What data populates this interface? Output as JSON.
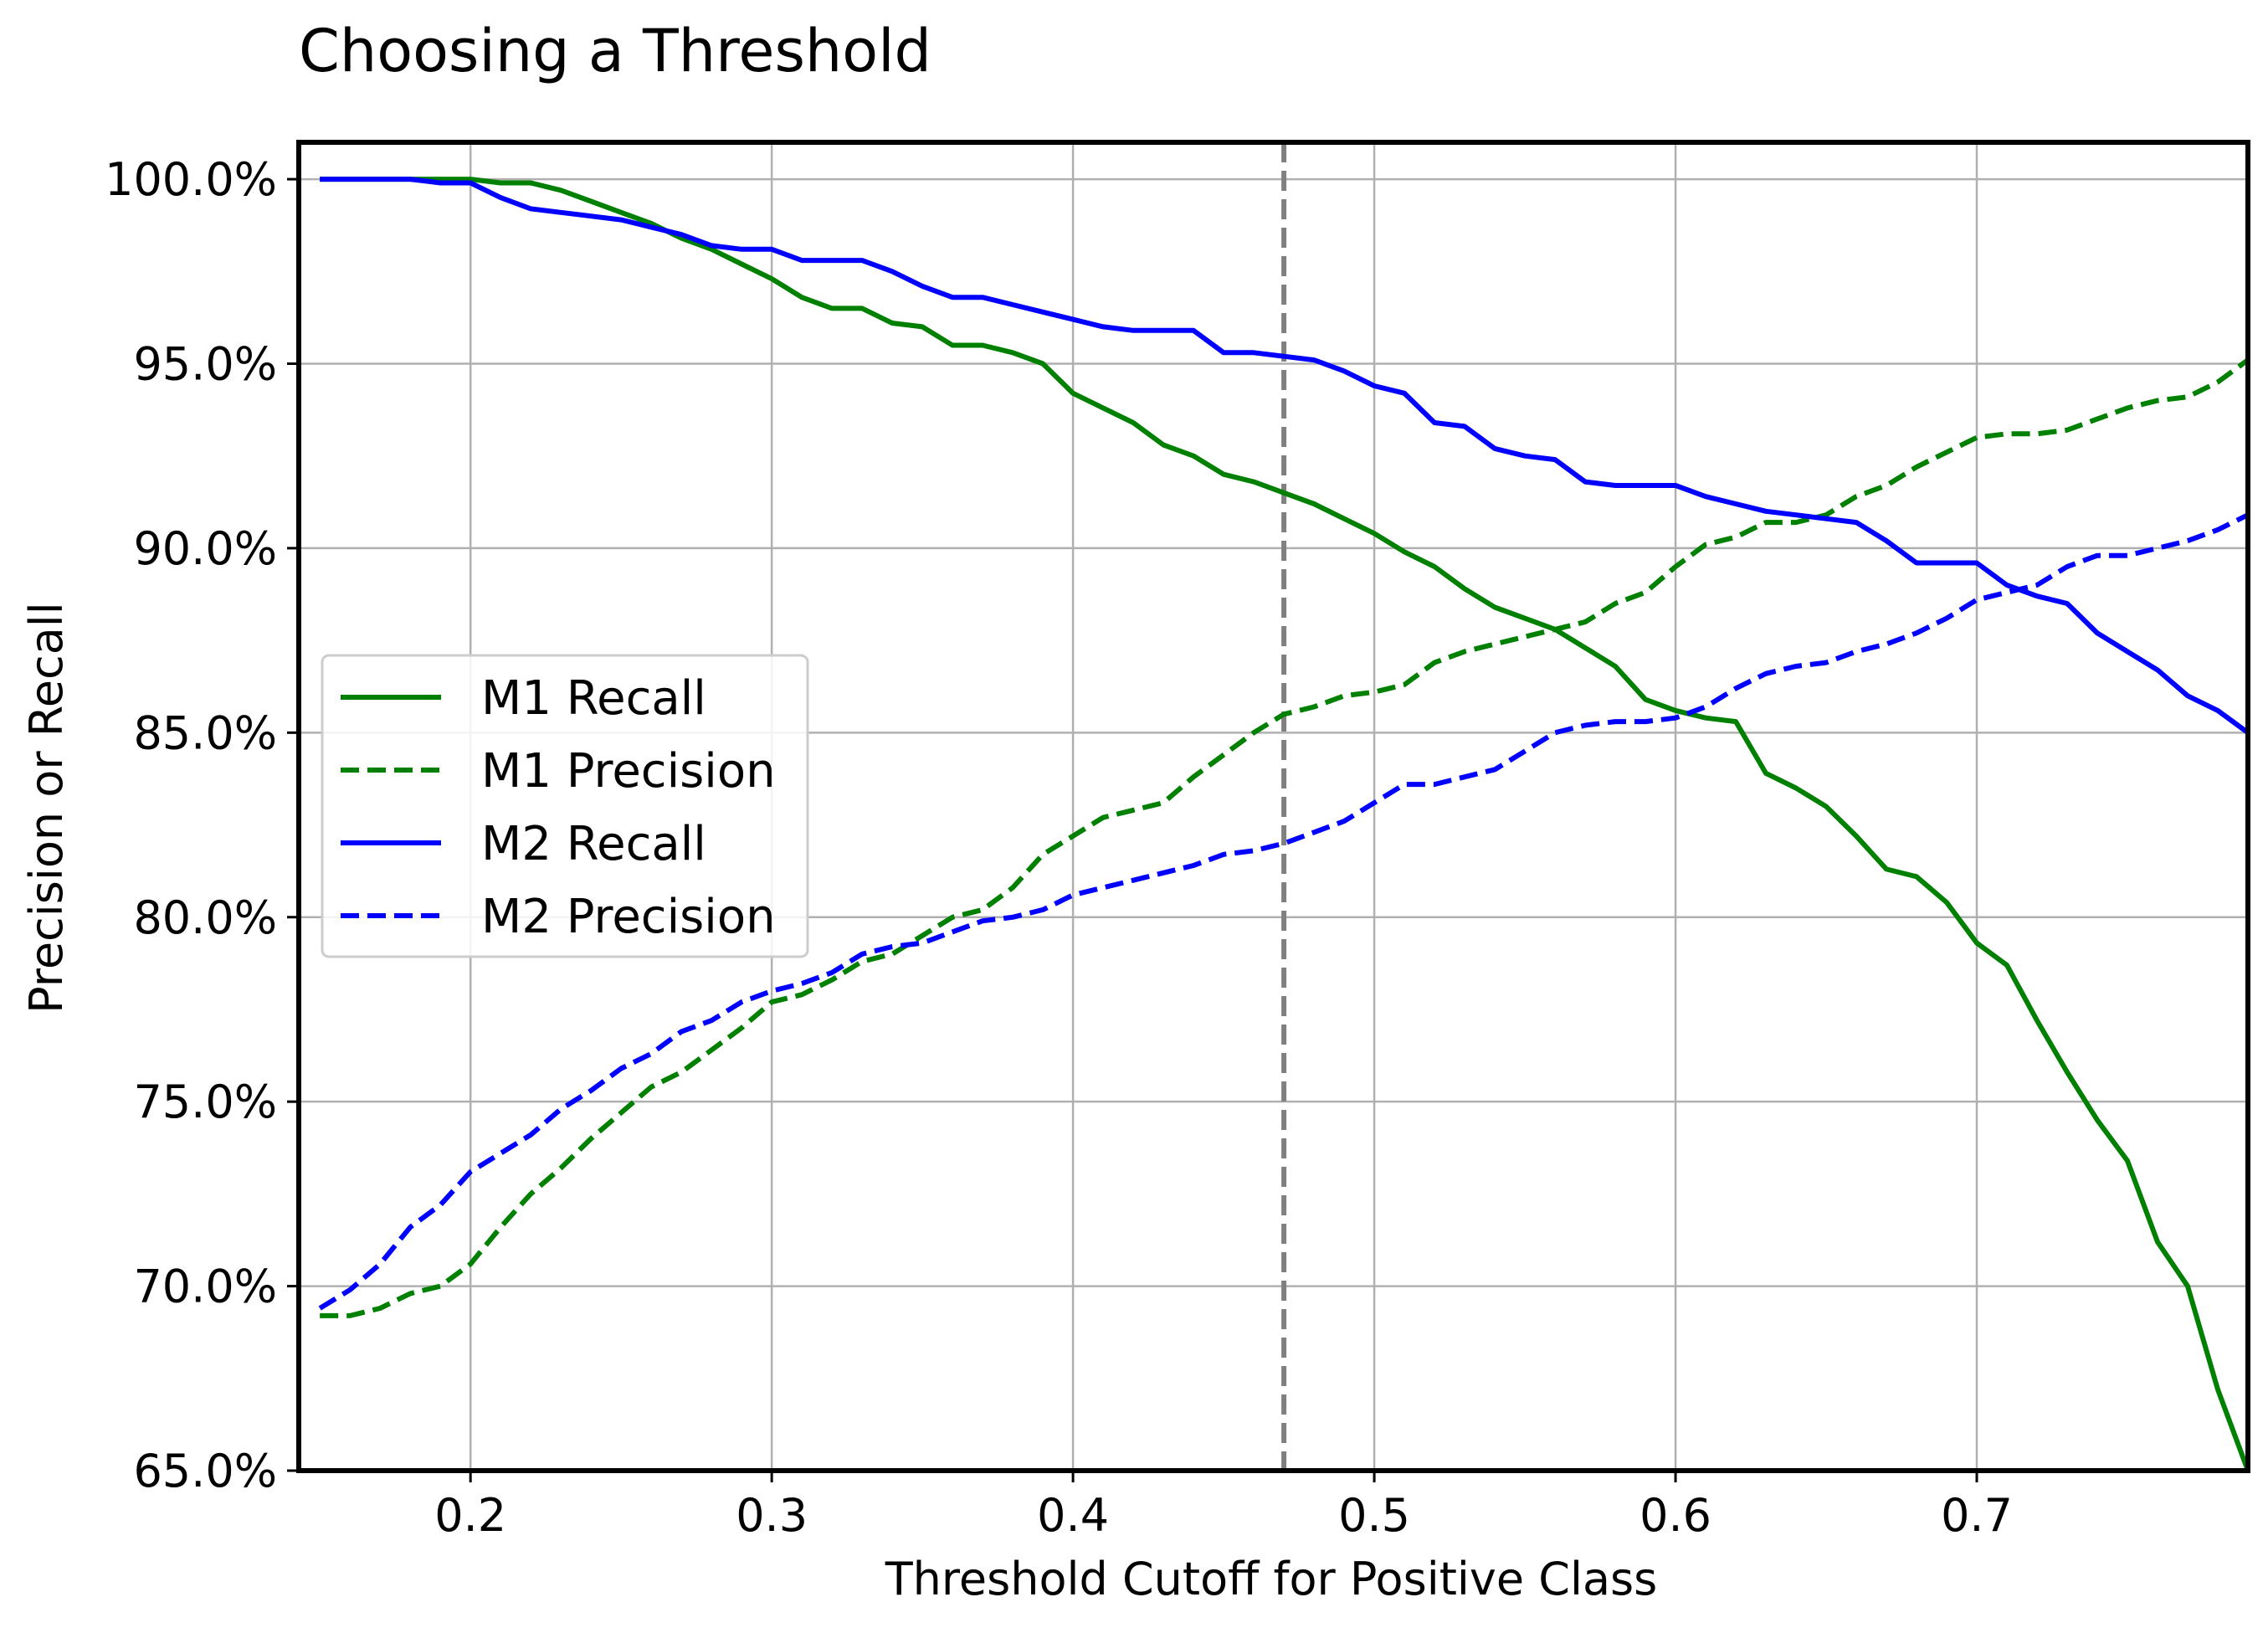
{
  "chart_data": {
    "type": "line",
    "title": "Choosing a Threshold",
    "xlabel": "Threshold Cutoff for Positive Class",
    "ylabel": "Precision or Recall",
    "xlim": [
      0.143,
      0.79
    ],
    "ylim": [
      0.65,
      1.01
    ],
    "x_ticks": [
      0.2,
      0.3,
      0.4,
      0.5,
      0.6,
      0.7
    ],
    "x_tick_labels": [
      "0.2",
      "0.3",
      "0.4",
      "0.5",
      "0.6",
      "0.7"
    ],
    "y_ticks": [
      0.65,
      0.7,
      0.75,
      0.8,
      0.85,
      0.9,
      0.95,
      1.0
    ],
    "y_tick_labels": [
      "65.0%",
      "70.0%",
      "75.0%",
      "80.0%",
      "85.0%",
      "90.0%",
      "95.0%",
      "100.0%"
    ],
    "grid": true,
    "legend_position": "center-left",
    "threshold_line": {
      "x": 0.47,
      "color": "#808080",
      "style": "dashed"
    },
    "x": [
      0.15,
      0.16,
      0.17,
      0.18,
      0.19,
      0.2,
      0.21,
      0.22,
      0.23,
      0.24,
      0.25,
      0.26,
      0.27,
      0.28,
      0.29,
      0.3,
      0.31,
      0.32,
      0.33,
      0.34,
      0.35,
      0.36,
      0.37,
      0.38,
      0.39,
      0.4,
      0.41,
      0.42,
      0.43,
      0.44,
      0.45,
      0.46,
      0.47,
      0.48,
      0.49,
      0.5,
      0.51,
      0.52,
      0.53,
      0.54,
      0.55,
      0.56,
      0.57,
      0.58,
      0.59,
      0.6,
      0.61,
      0.62,
      0.63,
      0.64,
      0.65,
      0.66,
      0.67,
      0.68,
      0.69,
      0.7,
      0.71,
      0.72,
      0.73,
      0.74,
      0.75,
      0.76,
      0.77,
      0.78,
      0.79
    ],
    "series": [
      {
        "name": "M1 Recall",
        "color": "#008000",
        "style": "solid",
        "values": [
          1.0,
          1.0,
          1.0,
          1.0,
          1.0,
          1.0,
          0.999,
          0.999,
          0.997,
          0.994,
          0.991,
          0.988,
          0.984,
          0.981,
          0.977,
          0.973,
          0.968,
          0.965,
          0.965,
          0.961,
          0.96,
          0.955,
          0.955,
          0.953,
          0.95,
          0.942,
          0.938,
          0.934,
          0.928,
          0.925,
          0.92,
          0.918,
          0.915,
          0.912,
          0.908,
          0.904,
          0.899,
          0.895,
          0.889,
          0.884,
          0.881,
          0.878,
          0.873,
          0.868,
          0.859,
          0.856,
          0.854,
          0.853,
          0.839,
          0.835,
          0.83,
          0.822,
          0.813,
          0.811,
          0.804,
          0.793,
          0.787,
          0.772,
          0.758,
          0.745,
          0.734,
          0.712,
          0.7,
          0.672,
          0.65
        ]
      },
      {
        "name": "M1 Precision",
        "color": "#008000",
        "style": "dashed",
        "values": [
          0.692,
          0.692,
          0.694,
          0.698,
          0.7,
          0.706,
          0.716,
          0.725,
          0.732,
          0.74,
          0.747,
          0.754,
          0.758,
          0.764,
          0.77,
          0.777,
          0.779,
          0.783,
          0.788,
          0.79,
          0.795,
          0.8,
          0.802,
          0.808,
          0.817,
          0.822,
          0.827,
          0.829,
          0.831,
          0.838,
          0.844,
          0.85,
          0.855,
          0.857,
          0.86,
          0.861,
          0.863,
          0.869,
          0.872,
          0.874,
          0.876,
          0.878,
          0.88,
          0.885,
          0.888,
          0.895,
          0.901,
          0.903,
          0.907,
          0.907,
          0.909,
          0.914,
          0.917,
          0.922,
          0.926,
          0.93,
          0.931,
          0.931,
          0.932,
          0.935,
          0.938,
          0.94,
          0.941,
          0.945,
          0.951
        ]
      },
      {
        "name": "M2 Recall",
        "color": "#0000ff",
        "style": "solid",
        "values": [
          1.0,
          1.0,
          1.0,
          1.0,
          0.999,
          0.999,
          0.995,
          0.992,
          0.991,
          0.99,
          0.989,
          0.987,
          0.985,
          0.982,
          0.981,
          0.981,
          0.978,
          0.978,
          0.978,
          0.975,
          0.971,
          0.968,
          0.968,
          0.966,
          0.964,
          0.962,
          0.96,
          0.959,
          0.959,
          0.959,
          0.953,
          0.953,
          0.952,
          0.951,
          0.948,
          0.944,
          0.942,
          0.934,
          0.933,
          0.927,
          0.925,
          0.924,
          0.918,
          0.917,
          0.917,
          0.917,
          0.914,
          0.912,
          0.91,
          0.909,
          0.908,
          0.907,
          0.902,
          0.896,
          0.896,
          0.896,
          0.89,
          0.887,
          0.885,
          0.877,
          0.872,
          0.867,
          0.86,
          0.856,
          0.85
        ]
      },
      {
        "name": "M2 Precision",
        "color": "#0000ff",
        "style": "dashed",
        "values": [
          0.694,
          0.699,
          0.706,
          0.716,
          0.722,
          0.731,
          0.736,
          0.741,
          0.748,
          0.753,
          0.759,
          0.763,
          0.769,
          0.772,
          0.777,
          0.78,
          0.782,
          0.785,
          0.79,
          0.792,
          0.793,
          0.796,
          0.799,
          0.8,
          0.802,
          0.806,
          0.808,
          0.81,
          0.812,
          0.814,
          0.817,
          0.818,
          0.82,
          0.823,
          0.826,
          0.831,
          0.836,
          0.836,
          0.838,
          0.84,
          0.845,
          0.85,
          0.852,
          0.853,
          0.853,
          0.854,
          0.857,
          0.862,
          0.866,
          0.868,
          0.869,
          0.872,
          0.874,
          0.877,
          0.881,
          0.886,
          0.888,
          0.89,
          0.895,
          0.898,
          0.898,
          0.9,
          0.902,
          0.905,
          0.909
        ]
      }
    ]
  }
}
